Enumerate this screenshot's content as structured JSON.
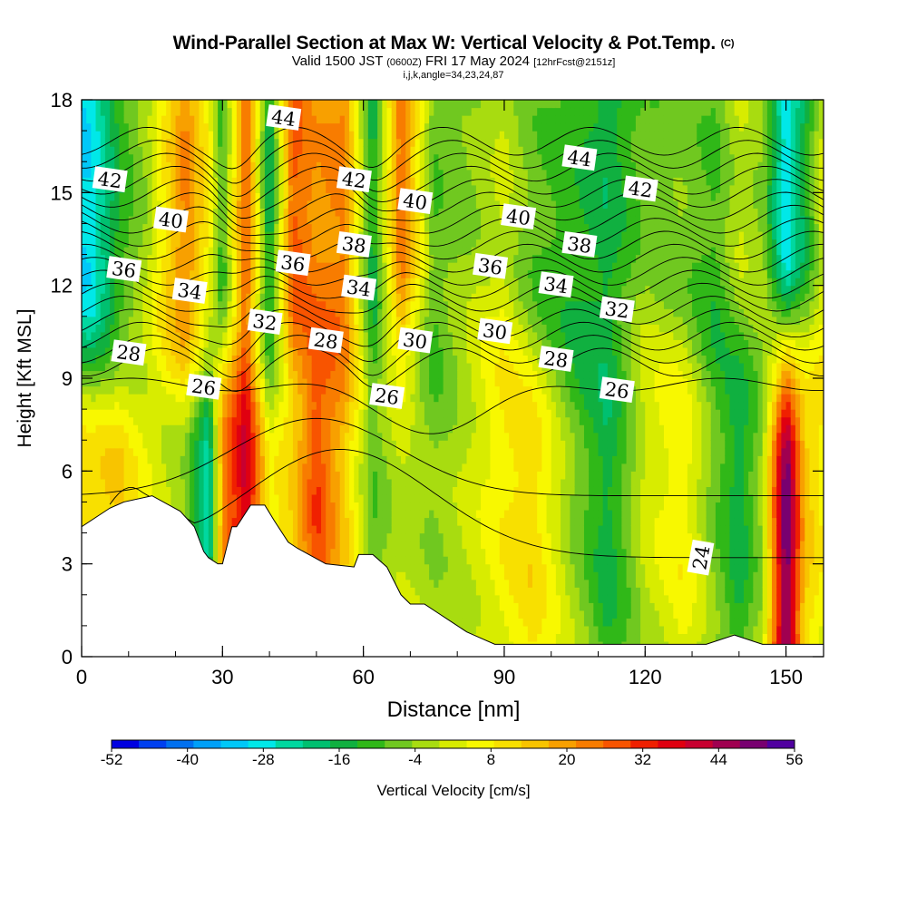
{
  "title": "Wind-Parallel Section at Max W: Vertical Velocity & Pot.Temp.",
  "title_tag": "(C)",
  "subtitle_prefix": "Valid 1500 JST",
  "subtitle_zulu": "(0600Z)",
  "subtitle_date": "FRI 17 May 2024",
  "subtitle_fcst": "[12hrFcst@2151z]",
  "subtitle2": "i,j,k,angle=34,23,24,87",
  "chart_data": {
    "type": "heatmap",
    "xlabel": "Distance [nm]",
    "ylabel": "Height [Kft MSL]",
    "xlim": [
      0,
      158
    ],
    "ylim": [
      0,
      18
    ],
    "x_ticks": [
      0,
      30,
      60,
      90,
      120,
      150
    ],
    "y_ticks": [
      0,
      3,
      6,
      9,
      12,
      15,
      18
    ],
    "colorbar": {
      "label": "Vertical Velocity [cm/s]",
      "tick_labels": [
        -52,
        -40,
        -28,
        -16,
        -4,
        8,
        20,
        32,
        44,
        56
      ],
      "colors": [
        "#0000e0",
        "#0040f0",
        "#0070f0",
        "#00a0f8",
        "#00c8f8",
        "#00e8e8",
        "#00d8a0",
        "#00c070",
        "#10b040",
        "#30b818",
        "#70c820",
        "#a8dc10",
        "#d8ec00",
        "#f8f800",
        "#f8e000",
        "#f8c400",
        "#f8a000",
        "#f87c00",
        "#f85400",
        "#f02000",
        "#e00010",
        "#c80030",
        "#a00050",
        "#780070",
        "#5000a0"
      ]
    },
    "vertical_velocity_columns": {
      "x": [
        2,
        8,
        14,
        22,
        27,
        30,
        35,
        40,
        45,
        50,
        56,
        62,
        68,
        75,
        82,
        90,
        96,
        104,
        112,
        120,
        128,
        135,
        140,
        145,
        150,
        154,
        158
      ],
      "lower_values": [
        10,
        14,
        6,
        -4,
        -28,
        20,
        40,
        6,
        14,
        32,
        14,
        -10,
        -2,
        -4,
        2,
        8,
        10,
        -4,
        -14,
        2,
        6,
        -8,
        -16,
        -2,
        54,
        16,
        6
      ],
      "upper_values": [
        -30,
        -14,
        -4,
        24,
        10,
        -10,
        28,
        -20,
        26,
        20,
        24,
        -14,
        26,
        -10,
        -6,
        2,
        -6,
        -12,
        -18,
        -6,
        -4,
        -10,
        -2,
        -6,
        -30,
        -14,
        4
      ]
    },
    "theta_contours": {
      "levels": [
        24,
        26,
        28,
        30,
        32,
        34,
        36,
        38,
        40,
        42,
        44
      ],
      "labels": [
        {
          "level": 44,
          "x": 43,
          "y": 17.4
        },
        {
          "level": 44,
          "x": 106,
          "y": 16.1
        },
        {
          "level": 42,
          "x": 6,
          "y": 15.4
        },
        {
          "level": 42,
          "x": 58,
          "y": 15.4
        },
        {
          "level": 42,
          "x": 119,
          "y": 15.1
        },
        {
          "level": 40,
          "x": 19,
          "y": 14.1
        },
        {
          "level": 40,
          "x": 71,
          "y": 14.7
        },
        {
          "level": 40,
          "x": 93,
          "y": 14.2
        },
        {
          "level": 38,
          "x": 58,
          "y": 13.3
        },
        {
          "level": 38,
          "x": 106,
          "y": 13.3
        },
        {
          "level": 36,
          "x": 9,
          "y": 12.5
        },
        {
          "level": 36,
          "x": 45,
          "y": 12.7
        },
        {
          "level": 36,
          "x": 87,
          "y": 12.6
        },
        {
          "level": 34,
          "x": 23,
          "y": 11.8
        },
        {
          "level": 34,
          "x": 59,
          "y": 11.9
        },
        {
          "level": 34,
          "x": 101,
          "y": 12.0
        },
        {
          "level": 32,
          "x": 39,
          "y": 10.8
        },
        {
          "level": 32,
          "x": 114,
          "y": 11.2
        },
        {
          "level": 30,
          "x": 71,
          "y": 10.2
        },
        {
          "level": 30,
          "x": 88,
          "y": 10.5
        },
        {
          "level": 28,
          "x": 10,
          "y": 9.8
        },
        {
          "level": 28,
          "x": 52,
          "y": 10.2
        },
        {
          "level": 28,
          "x": 101,
          "y": 9.6
        },
        {
          "level": 26,
          "x": 26,
          "y": 8.7
        },
        {
          "level": 26,
          "x": 65,
          "y": 8.4
        },
        {
          "level": 26,
          "x": 114,
          "y": 8.6
        },
        {
          "level": 24,
          "x": 132,
          "y": 3.2
        }
      ]
    },
    "terrain_profile": {
      "x": [
        0,
        3,
        6,
        9,
        15,
        21,
        24,
        26,
        27,
        29,
        30,
        32,
        33,
        36,
        39,
        41,
        44,
        46,
        52,
        58,
        59,
        62,
        65,
        68,
        70,
        73,
        76,
        79,
        82,
        85,
        88,
        90,
        133,
        139,
        145,
        158
      ],
      "height": [
        4.2,
        4.5,
        4.8,
        5.0,
        5.2,
        4.7,
        4.2,
        3.4,
        3.2,
        3.0,
        3.0,
        4.2,
        4.2,
        4.9,
        4.9,
        4.4,
        3.7,
        3.5,
        3.0,
        2.9,
        3.3,
        3.3,
        2.9,
        2.0,
        1.7,
        1.7,
        1.4,
        1.1,
        0.8,
        0.6,
        0.4,
        0.4,
        0.4,
        0.7,
        0.4,
        0.4
      ]
    }
  }
}
